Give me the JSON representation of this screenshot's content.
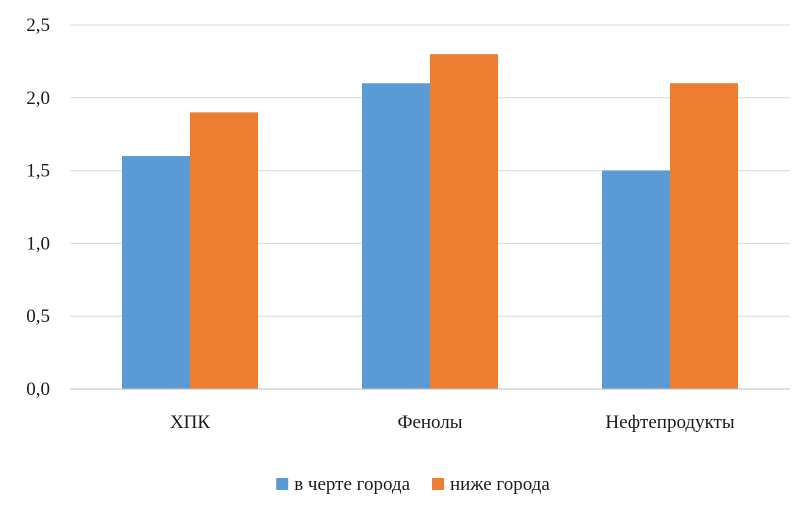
{
  "chart_data": {
    "type": "bar",
    "categories": [
      "ХПК",
      "Фенолы",
      "Нефтепродукты"
    ],
    "series": [
      {
        "name": "в черте города",
        "values": [
          1.6,
          2.1,
          1.5
        ],
        "color": "#5b9bd5"
      },
      {
        "name": "ниже города",
        "values": [
          1.9,
          2.3,
          2.1
        ],
        "color": "#ed7d31"
      }
    ],
    "y_ticks": [
      "0,0",
      "0,5",
      "1,0",
      "1,5",
      "2,0",
      "2,5"
    ],
    "ylim": [
      0,
      2.5
    ],
    "grid": true,
    "legend": "bottom"
  }
}
